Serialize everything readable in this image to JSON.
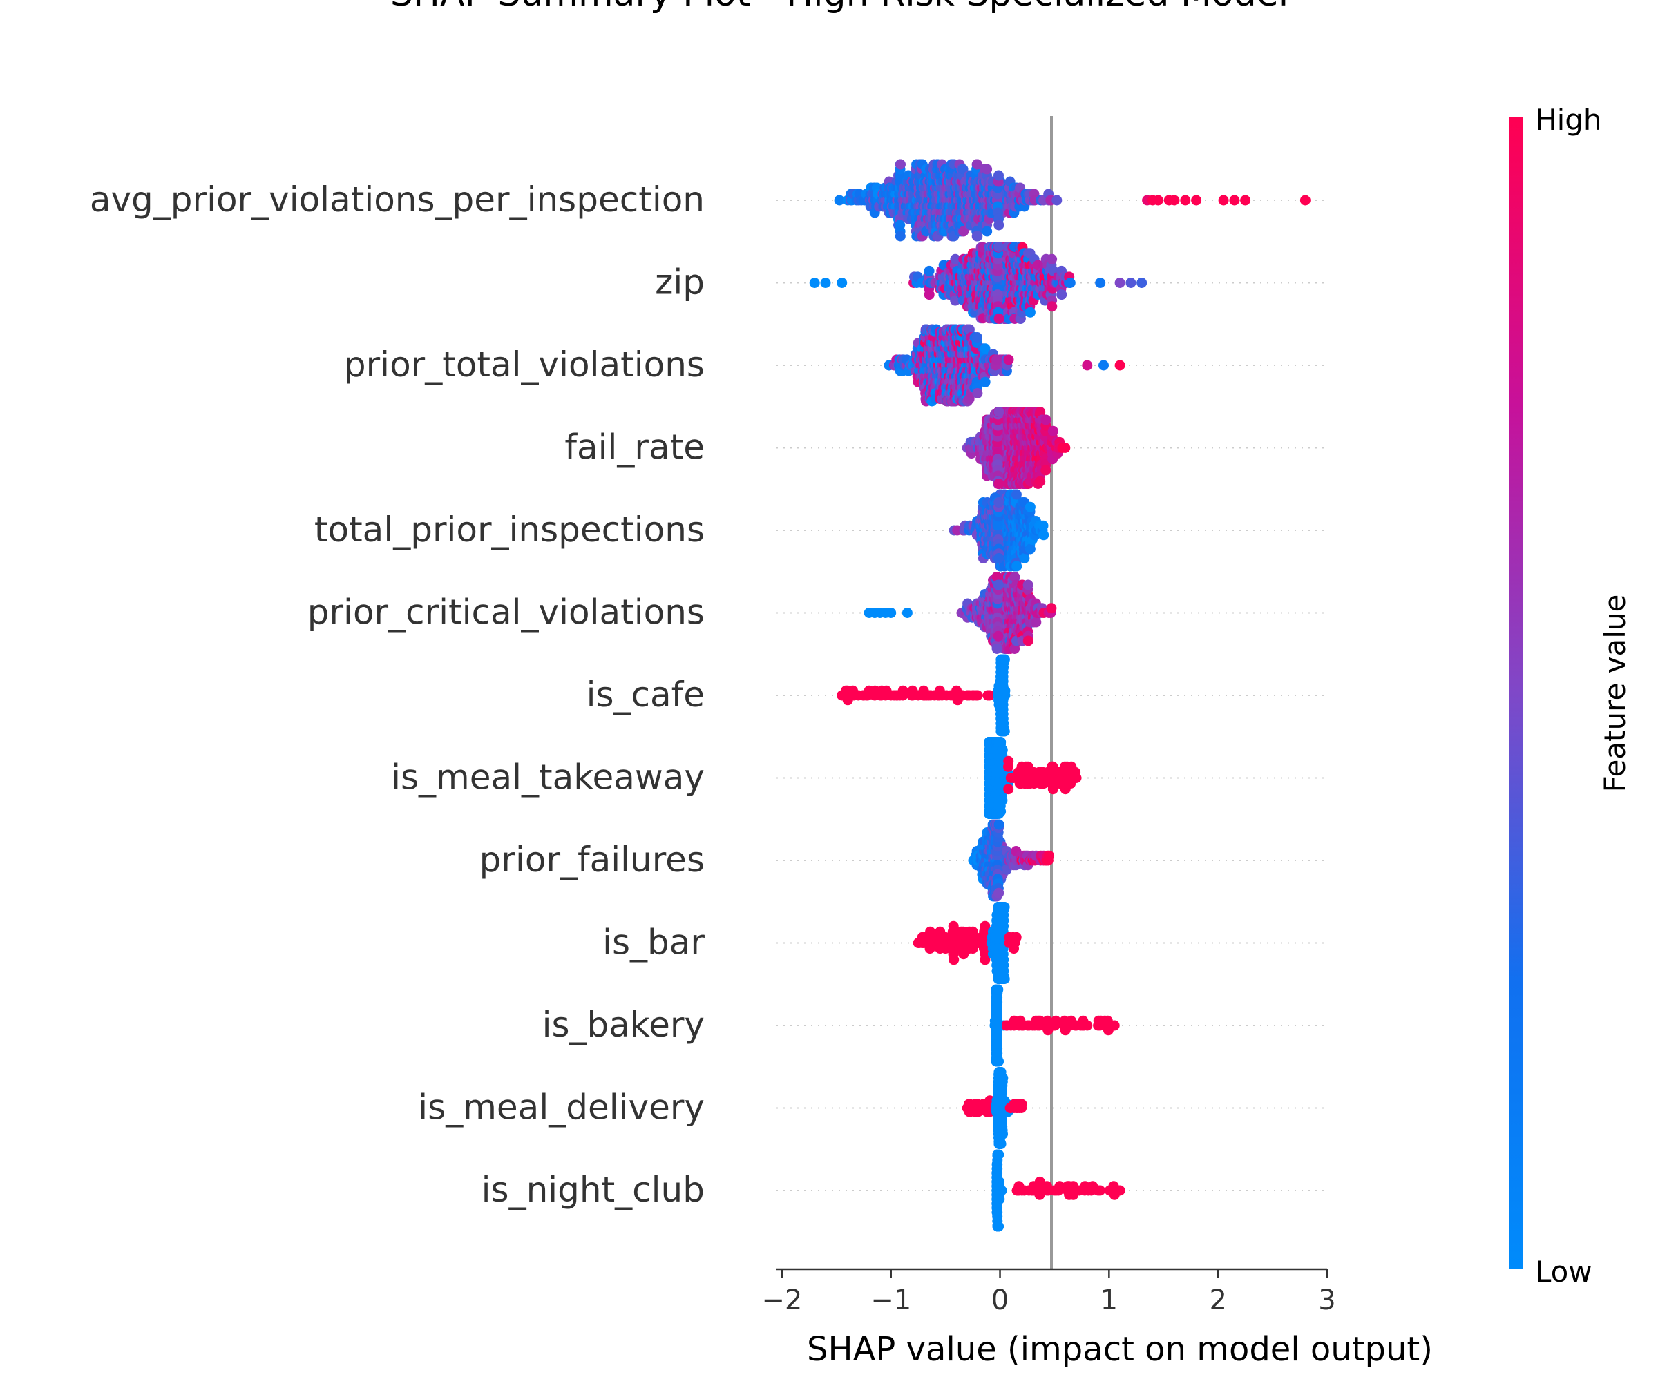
{
  "chart_data": {
    "type": "scatter",
    "subtype": "shap-beeswarm",
    "title": "SHAP Summary Plot - High Risk Specialized Model",
    "xlabel": "SHAP value (impact on model output)",
    "ylabel": "",
    "xlim": [
      -2.05,
      3.0
    ],
    "xticks": [
      -2,
      -1,
      0,
      1,
      2,
      3
    ],
    "xtick_labels": [
      "−2",
      "−1",
      "0",
      "1",
      "2",
      "3"
    ],
    "colorbar": {
      "label": "Feature value",
      "high_label": "High",
      "low_label": "Low",
      "high_color": "#ff0052",
      "low_color": "#008bfb"
    },
    "colors": {
      "axis": "#333333",
      "gridline": "#cccccc",
      "zero_line": "#999999"
    },
    "grid": "dotted horizontal row lines",
    "features": [
      {
        "name": "avg_prior_violations_per_inspection",
        "min": -1.8,
        "max": 2.8,
        "mode": -0.5,
        "spread": 0.95,
        "density": 1.0,
        "corr": 0.7,
        "n": 620,
        "points": [
          [
            2.8,
            1.0
          ],
          [
            2.25,
            1.0
          ],
          [
            2.15,
            1.0
          ],
          [
            2.05,
            1.0
          ],
          [
            1.8,
            1.0
          ],
          [
            1.7,
            1.0
          ],
          [
            1.6,
            1.0
          ],
          [
            1.55,
            1.0
          ],
          [
            1.45,
            1.0
          ],
          [
            1.4,
            1.0
          ],
          [
            1.35,
            0.9
          ]
        ]
      },
      {
        "name": "zip",
        "min": -1.7,
        "max": 1.35,
        "mode": 0.0,
        "spread": 0.75,
        "density": 0.95,
        "corr": 0.3,
        "n": 560,
        "points": [
          [
            1.3,
            0.35
          ],
          [
            1.2,
            0.4
          ],
          [
            1.1,
            0.5
          ],
          [
            -1.7,
            0.0
          ],
          [
            -1.6,
            0.0
          ],
          [
            -1.45,
            0.0
          ]
        ]
      },
      {
        "name": "prior_total_violations",
        "min": -1.25,
        "max": 1.1,
        "mode": -0.45,
        "spread": 0.55,
        "density": 0.9,
        "corr": 0.2,
        "n": 480,
        "points": [
          [
            1.1,
            1.0
          ],
          [
            0.95,
            0.15
          ],
          [
            0.8,
            0.8
          ]
        ]
      },
      {
        "name": "fail_rate",
        "min": -1.35,
        "max": 0.7,
        "mode": 0.15,
        "spread": 0.45,
        "density": 0.9,
        "corr": 0.95,
        "n": 520,
        "points": []
      },
      {
        "name": "total_prior_inspections",
        "min": -1.25,
        "max": 0.4,
        "mode": 0.05,
        "spread": 0.4,
        "density": 0.75,
        "corr": -0.9,
        "n": 380,
        "points": []
      },
      {
        "name": "prior_critical_violations",
        "min": -1.2,
        "max": 0.7,
        "mode": 0.05,
        "spread": 0.4,
        "density": 0.75,
        "corr": 0.7,
        "n": 360,
        "points": [
          [
            -1.2,
            0.0
          ],
          [
            -1.15,
            0.0
          ],
          [
            -1.1,
            0.0
          ],
          [
            -1.05,
            0.0
          ],
          [
            -1.0,
            0.0
          ],
          [
            -0.85,
            0.0
          ]
        ]
      },
      {
        "name": "is_cafe",
        "min": -1.45,
        "max": 0.05,
        "mode": 0.02,
        "spread": 0.02,
        "density": 0.75,
        "corr": -1.0,
        "n": 120,
        "points": [
          [
            -1.45,
            1.0
          ],
          [
            -1.4,
            1.0
          ],
          [
            -1.35,
            1.0
          ],
          [
            -1.3,
            1.0
          ],
          [
            -1.25,
            1.0
          ],
          [
            -1.2,
            1.0
          ],
          [
            -1.15,
            1.0
          ],
          [
            -1.1,
            1.0
          ],
          [
            -1.05,
            1.0
          ],
          [
            -1.0,
            1.0
          ],
          [
            -0.95,
            1.0
          ],
          [
            -0.8,
            1.0
          ],
          [
            -0.75,
            1.0
          ],
          [
            -0.7,
            1.0
          ],
          [
            -0.6,
            1.0
          ],
          [
            -0.45,
            1.0
          ],
          [
            -0.4,
            1.0
          ],
          [
            -0.3,
            1.0
          ]
        ]
      },
      {
        "name": "is_meal_takeaway",
        "min": -0.1,
        "max": 0.7,
        "mode": -0.05,
        "spread": 0.05,
        "density": 0.9,
        "corr": 1.0,
        "n": 260,
        "points": [
          [
            0.1,
            1.0
          ],
          [
            0.2,
            1.0
          ],
          [
            0.3,
            1.0
          ],
          [
            0.4,
            1.0
          ],
          [
            0.5,
            1.0
          ],
          [
            0.6,
            1.0
          ],
          [
            0.7,
            1.0
          ]
        ]
      },
      {
        "name": "prior_failures",
        "min": -0.25,
        "max": 0.45,
        "mode": -0.05,
        "spread": 0.08,
        "density": 0.75,
        "corr": 0.9,
        "n": 200,
        "points": [
          [
            0.2,
            1.0
          ],
          [
            0.3,
            1.0
          ],
          [
            0.4,
            1.0
          ],
          [
            0.45,
            1.0
          ]
        ]
      },
      {
        "name": "is_bar",
        "min": -0.75,
        "max": 0.15,
        "mode": 0.0,
        "spread": 0.03,
        "density": 0.9,
        "corr": -1.0,
        "n": 240,
        "points": [
          [
            -0.75,
            1.0
          ],
          [
            -0.65,
            1.0
          ],
          [
            -0.55,
            1.0
          ],
          [
            -0.45,
            1.0
          ],
          [
            -0.35,
            1.0
          ],
          [
            -0.25,
            1.0
          ],
          [
            -0.15,
            1.0
          ],
          [
            0.15,
            1.0
          ]
        ]
      },
      {
        "name": "is_bakery",
        "min": -0.05,
        "max": 1.05,
        "mode": -0.03,
        "spread": 0.01,
        "density": 0.75,
        "corr": 1.0,
        "n": 120,
        "points": [
          [
            0.2,
            1.0
          ],
          [
            0.35,
            1.0
          ],
          [
            0.45,
            1.0
          ],
          [
            0.6,
            1.0
          ],
          [
            0.7,
            1.0
          ],
          [
            0.8,
            1.0
          ],
          [
            0.9,
            1.0
          ],
          [
            1.0,
            1.0
          ],
          [
            1.05,
            1.0
          ]
        ]
      },
      {
        "name": "is_meal_delivery",
        "min": -0.3,
        "max": 0.2,
        "mode": 0.0,
        "spread": 0.02,
        "density": 0.6,
        "corr": -1.0,
        "n": 120,
        "points": [
          [
            -0.3,
            1.0
          ],
          [
            -0.25,
            1.0
          ],
          [
            -0.2,
            1.0
          ],
          [
            -0.15,
            1.0
          ],
          [
            -0.1,
            1.0
          ],
          [
            0.15,
            1.0
          ],
          [
            0.2,
            1.0
          ]
        ]
      },
      {
        "name": "is_night_club",
        "min": -0.03,
        "max": 1.1,
        "mode": -0.02,
        "spread": 0.01,
        "density": 0.7,
        "corr": 1.0,
        "n": 110,
        "points": [
          [
            0.78,
            1.0
          ],
          [
            0.85,
            1.0
          ],
          [
            0.9,
            1.0
          ],
          [
            1.1,
            1.0
          ]
        ]
      }
    ]
  }
}
